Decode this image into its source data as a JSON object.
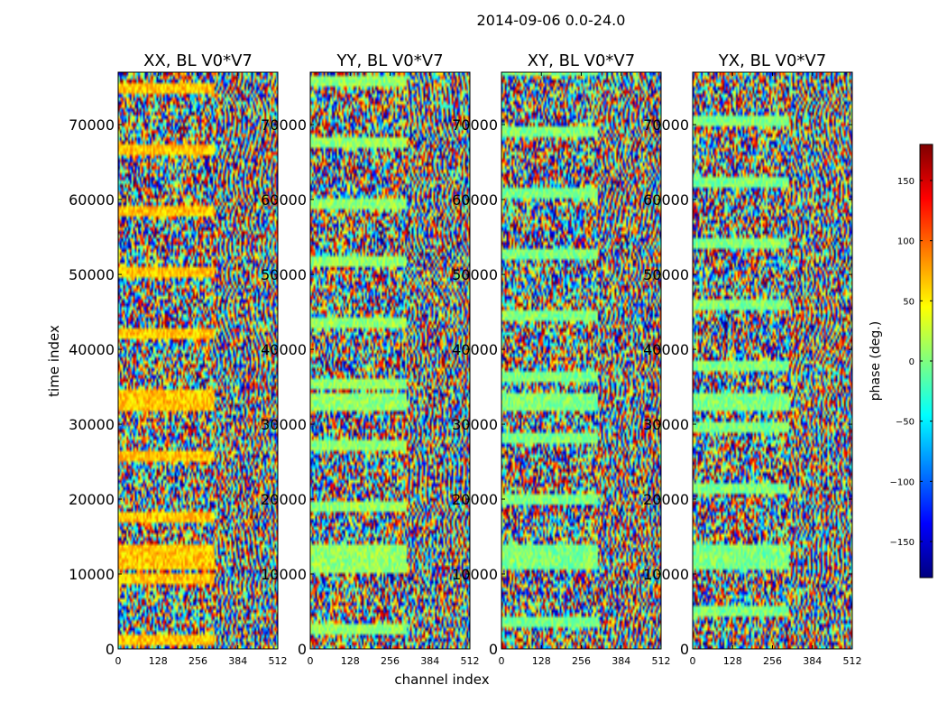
{
  "figure": {
    "title": "2014-09-06 0.0-24.0",
    "xlabel": "channel index",
    "ylabel": "time index"
  },
  "chart_data": {
    "type": "heatmap",
    "description_units": "phase in degrees per (channel, time) cell",
    "x_ticks": [
      0,
      128,
      256,
      384,
      512
    ],
    "y_ticks": [
      0,
      10000,
      20000,
      30000,
      40000,
      50000,
      60000,
      70000
    ],
    "xlim": [
      0,
      512
    ],
    "ylim": [
      0,
      77000
    ],
    "panels": [
      {
        "title": "XX, BL V0*V7",
        "pol": "XX"
      },
      {
        "title": "YY, BL V0*V7",
        "pol": "YY"
      },
      {
        "title": "XY, BL V0*V7",
        "pol": "XY"
      },
      {
        "title": "YX, BL V0*V7",
        "pol": "YX"
      }
    ],
    "colorbar": {
      "label": "phase (deg.)",
      "vmin": -180,
      "vmax": 180,
      "ticks": [
        150,
        100,
        50,
        0,
        -50,
        -100,
        -150
      ],
      "tick_labels": [
        "150",
        "100",
        "50",
        "0",
        "−50",
        "−100",
        "−150"
      ],
      "colormap": [
        "#00007f",
        "#0000ff",
        "#007fff",
        "#00ffff",
        "#7fff7f",
        "#ffff00",
        "#ff7f00",
        "#ff0000",
        "#7f0000"
      ]
    }
  }
}
